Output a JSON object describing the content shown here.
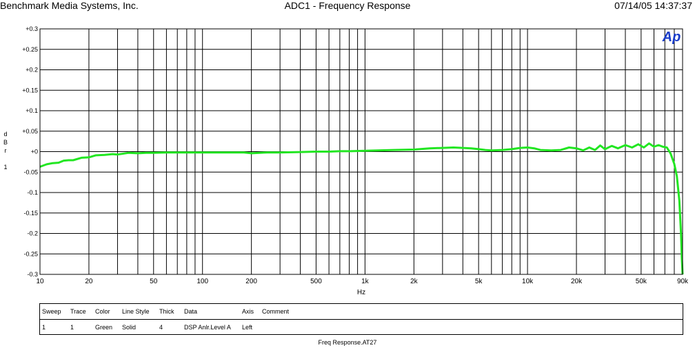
{
  "header": {
    "left": "Benchmark Media Systems, Inc.",
    "center": "ADC1 - Frequency Response",
    "right": "07/14/05 14:37:37"
  },
  "logo": "Ap",
  "chart_data": {
    "type": "line",
    "title": "ADC1 - Frequency Response",
    "xlabel": "Hz",
    "ylabel": "d B r 1",
    "x_scale": "log",
    "xlim": [
      10,
      90000
    ],
    "ylim": [
      -0.3,
      0.3
    ],
    "grid": true,
    "x_ticks": [
      {
        "value": 10,
        "label": "10"
      },
      {
        "value": 20,
        "label": "20"
      },
      {
        "value": 50,
        "label": "50"
      },
      {
        "value": 100,
        "label": "100"
      },
      {
        "value": 200,
        "label": "200"
      },
      {
        "value": 500,
        "label": "500"
      },
      {
        "value": 1000,
        "label": "1k"
      },
      {
        "value": 2000,
        "label": "2k"
      },
      {
        "value": 5000,
        "label": "5k"
      },
      {
        "value": 10000,
        "label": "10k"
      },
      {
        "value": 20000,
        "label": "20k"
      },
      {
        "value": 50000,
        "label": "50k"
      },
      {
        "value": 90000,
        "label": "90k"
      }
    ],
    "y_ticks": [
      {
        "value": 0.3,
        "label": "+0.3"
      },
      {
        "value": 0.25,
        "label": "+0.25"
      },
      {
        "value": 0.2,
        "label": "+0.2"
      },
      {
        "value": 0.15,
        "label": "+0.15"
      },
      {
        "value": 0.1,
        "label": "+0.1"
      },
      {
        "value": 0.05,
        "label": "+0.05"
      },
      {
        "value": 0,
        "label": "+0"
      },
      {
        "value": -0.05,
        "label": "-0.05"
      },
      {
        "value": -0.1,
        "label": "-0.1"
      },
      {
        "value": -0.15,
        "label": "-0.15"
      },
      {
        "value": -0.2,
        "label": "-0.2"
      },
      {
        "value": -0.25,
        "label": "-0.25"
      },
      {
        "value": -0.3,
        "label": "-0.3"
      }
    ],
    "series": [
      {
        "color": "#22e622",
        "x": [
          10,
          11,
          12,
          13,
          14,
          15,
          16,
          18,
          20,
          22,
          25,
          28,
          30,
          35,
          40,
          45,
          50,
          60,
          70,
          80,
          100,
          120,
          150,
          180,
          200,
          250,
          300,
          400,
          500,
          600,
          700,
          800,
          1000,
          1200,
          1500,
          2000,
          2500,
          3000,
          3500,
          4000,
          4500,
          5000,
          5500,
          6000,
          7000,
          8000,
          9000,
          10000,
          11000,
          12000,
          14000,
          16000,
          18000,
          20000,
          22000,
          24000,
          26000,
          28000,
          30000,
          33000,
          36000,
          40000,
          44000,
          48000,
          52000,
          56000,
          60000,
          64000,
          68000,
          72000,
          76000,
          80000,
          83000,
          86000,
          88000,
          89000,
          90000
        ],
        "y": [
          -0.037,
          -0.031,
          -0.028,
          -0.027,
          -0.022,
          -0.021,
          -0.021,
          -0.015,
          -0.014,
          -0.009,
          -0.008,
          -0.006,
          -0.007,
          -0.003,
          -0.004,
          -0.003,
          -0.003,
          -0.002,
          -0.002,
          -0.002,
          -0.002,
          -0.002,
          -0.002,
          -0.002,
          -0.004,
          -0.002,
          -0.002,
          -0.001,
          0.0,
          0.0,
          0.001,
          0.001,
          0.002,
          0.003,
          0.004,
          0.005,
          0.008,
          0.009,
          0.01,
          0.009,
          0.008,
          0.006,
          0.004,
          0.003,
          0.004,
          0.006,
          0.009,
          0.01,
          0.008,
          0.004,
          0.003,
          0.004,
          0.01,
          0.008,
          0.003,
          0.01,
          0.004,
          0.015,
          0.006,
          0.014,
          0.008,
          0.016,
          0.01,
          0.018,
          0.01,
          0.02,
          0.012,
          0.016,
          0.012,
          0.01,
          -0.005,
          -0.03,
          -0.06,
          -0.12,
          -0.2,
          -0.26,
          -0.3
        ]
      }
    ]
  },
  "legend": {
    "headers": [
      "Sweep",
      "Trace",
      "Color",
      "Line Style",
      "Thick",
      "Data",
      "Axis",
      "Comment"
    ],
    "rows": [
      [
        "1",
        "1",
        "Green",
        "Solid",
        "4",
        "DSP Anlr.Level A",
        "Left",
        ""
      ]
    ]
  },
  "footer": "Freq Response.AT27"
}
